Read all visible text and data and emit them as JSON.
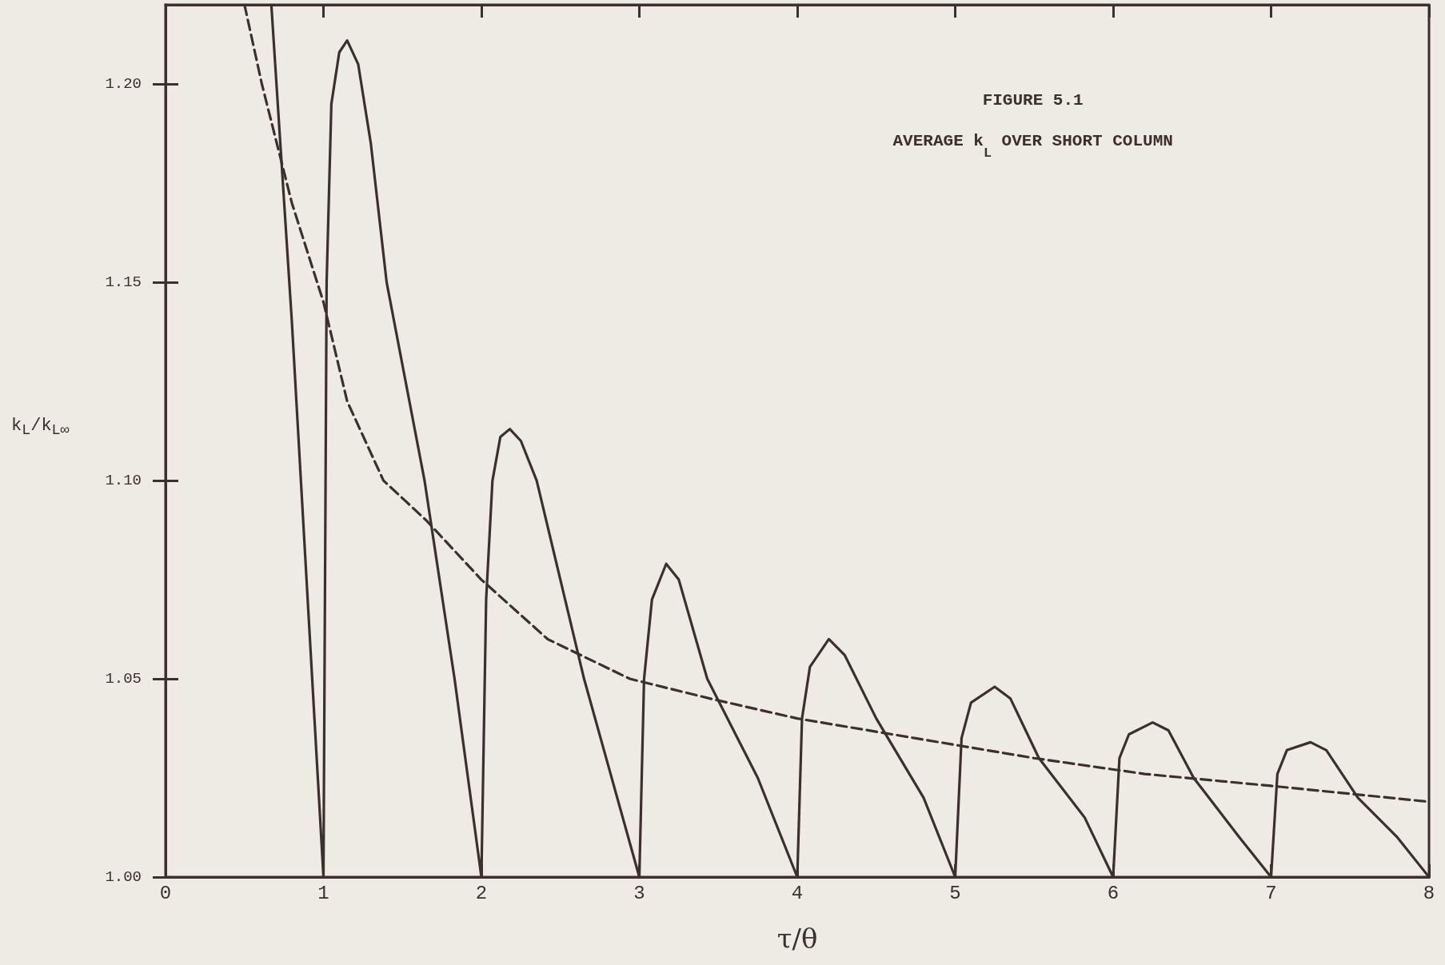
{
  "chart_data": {
    "type": "line",
    "title": "FIGURE 5.1",
    "subtitle": "AVERAGE k$_{L}$ OVER SHORT COLUMN",
    "xlabel": "τ/θ",
    "ylabel": "k$_{L}$/k$_{L∞}$",
    "xlim": [
      0,
      8
    ],
    "xticks": [
      0,
      1,
      2,
      3,
      4,
      5,
      6,
      7,
      8
    ],
    "ylim": [
      1,
      1.22
    ],
    "yticks": [
      {
        "value": 1,
        "label": "1.00"
      },
      {
        "value": 1.05,
        "label": "1.05"
      },
      {
        "value": 1.1,
        "label": "1.10"
      },
      {
        "value": 1.15,
        "label": "1.15"
      },
      {
        "value": 1.2,
        "label": "1.20"
      }
    ],
    "marker": "none",
    "grid": false,
    "series": [
      {
        "color": "#3b2f2f",
        "line_style": "solid",
        "x": [
          0.67,
          0.8,
          0.9,
          1.0,
          1.02,
          1.05,
          1.1,
          1.15,
          1.22,
          1.3,
          1.4,
          1.64,
          1.83,
          2.0,
          2.03,
          2.07,
          2.12,
          2.18,
          2.25,
          2.35,
          2.65,
          3.0,
          3.03,
          3.08,
          3.17,
          3.25,
          3.43,
          3.75,
          4.0,
          4.03,
          4.08,
          4.2,
          4.3,
          4.5,
          4.8,
          5.0,
          5.04,
          5.1,
          5.25,
          5.35,
          5.53,
          5.82,
          6.0,
          6.04,
          6.1,
          6.25,
          6.35,
          6.51,
          6.8,
          7.0,
          7.04,
          7.1,
          7.25,
          7.35,
          7.55,
          7.8,
          8.0
        ],
        "values": [
          1.22,
          1.14,
          1.07,
          1.0,
          1.15,
          1.195,
          1.208,
          1.211,
          1.205,
          1.185,
          1.15,
          1.1,
          1.05,
          1.0,
          1.07,
          1.1,
          1.111,
          1.113,
          1.11,
          1.1,
          1.05,
          1.0,
          1.05,
          1.07,
          1.079,
          1.075,
          1.05,
          1.025,
          1.0,
          1.04,
          1.053,
          1.06,
          1.056,
          1.04,
          1.02,
          1.0,
          1.035,
          1.044,
          1.048,
          1.045,
          1.03,
          1.015,
          1.0,
          1.03,
          1.036,
          1.039,
          1.037,
          1.025,
          1.01,
          1.0,
          1.026,
          1.032,
          1.034,
          1.032,
          1.02,
          1.01,
          1.0
        ]
      },
      {
        "color": "#3b2f2f",
        "line_style": "dashed",
        "x": [
          0.5,
          0.61,
          0.8,
          1.0,
          1.15,
          1.38,
          1.65,
          2.0,
          2.42,
          2.94,
          3.45,
          4.0,
          4.75,
          5.5,
          6.2,
          7.0,
          8.0
        ],
        "values": [
          1.22,
          1.2,
          1.17,
          1.145,
          1.12,
          1.1,
          1.09,
          1.075,
          1.06,
          1.05,
          1.045,
          1.04,
          1.035,
          1.03,
          1.026,
          1.023,
          1.019
        ]
      }
    ]
  }
}
